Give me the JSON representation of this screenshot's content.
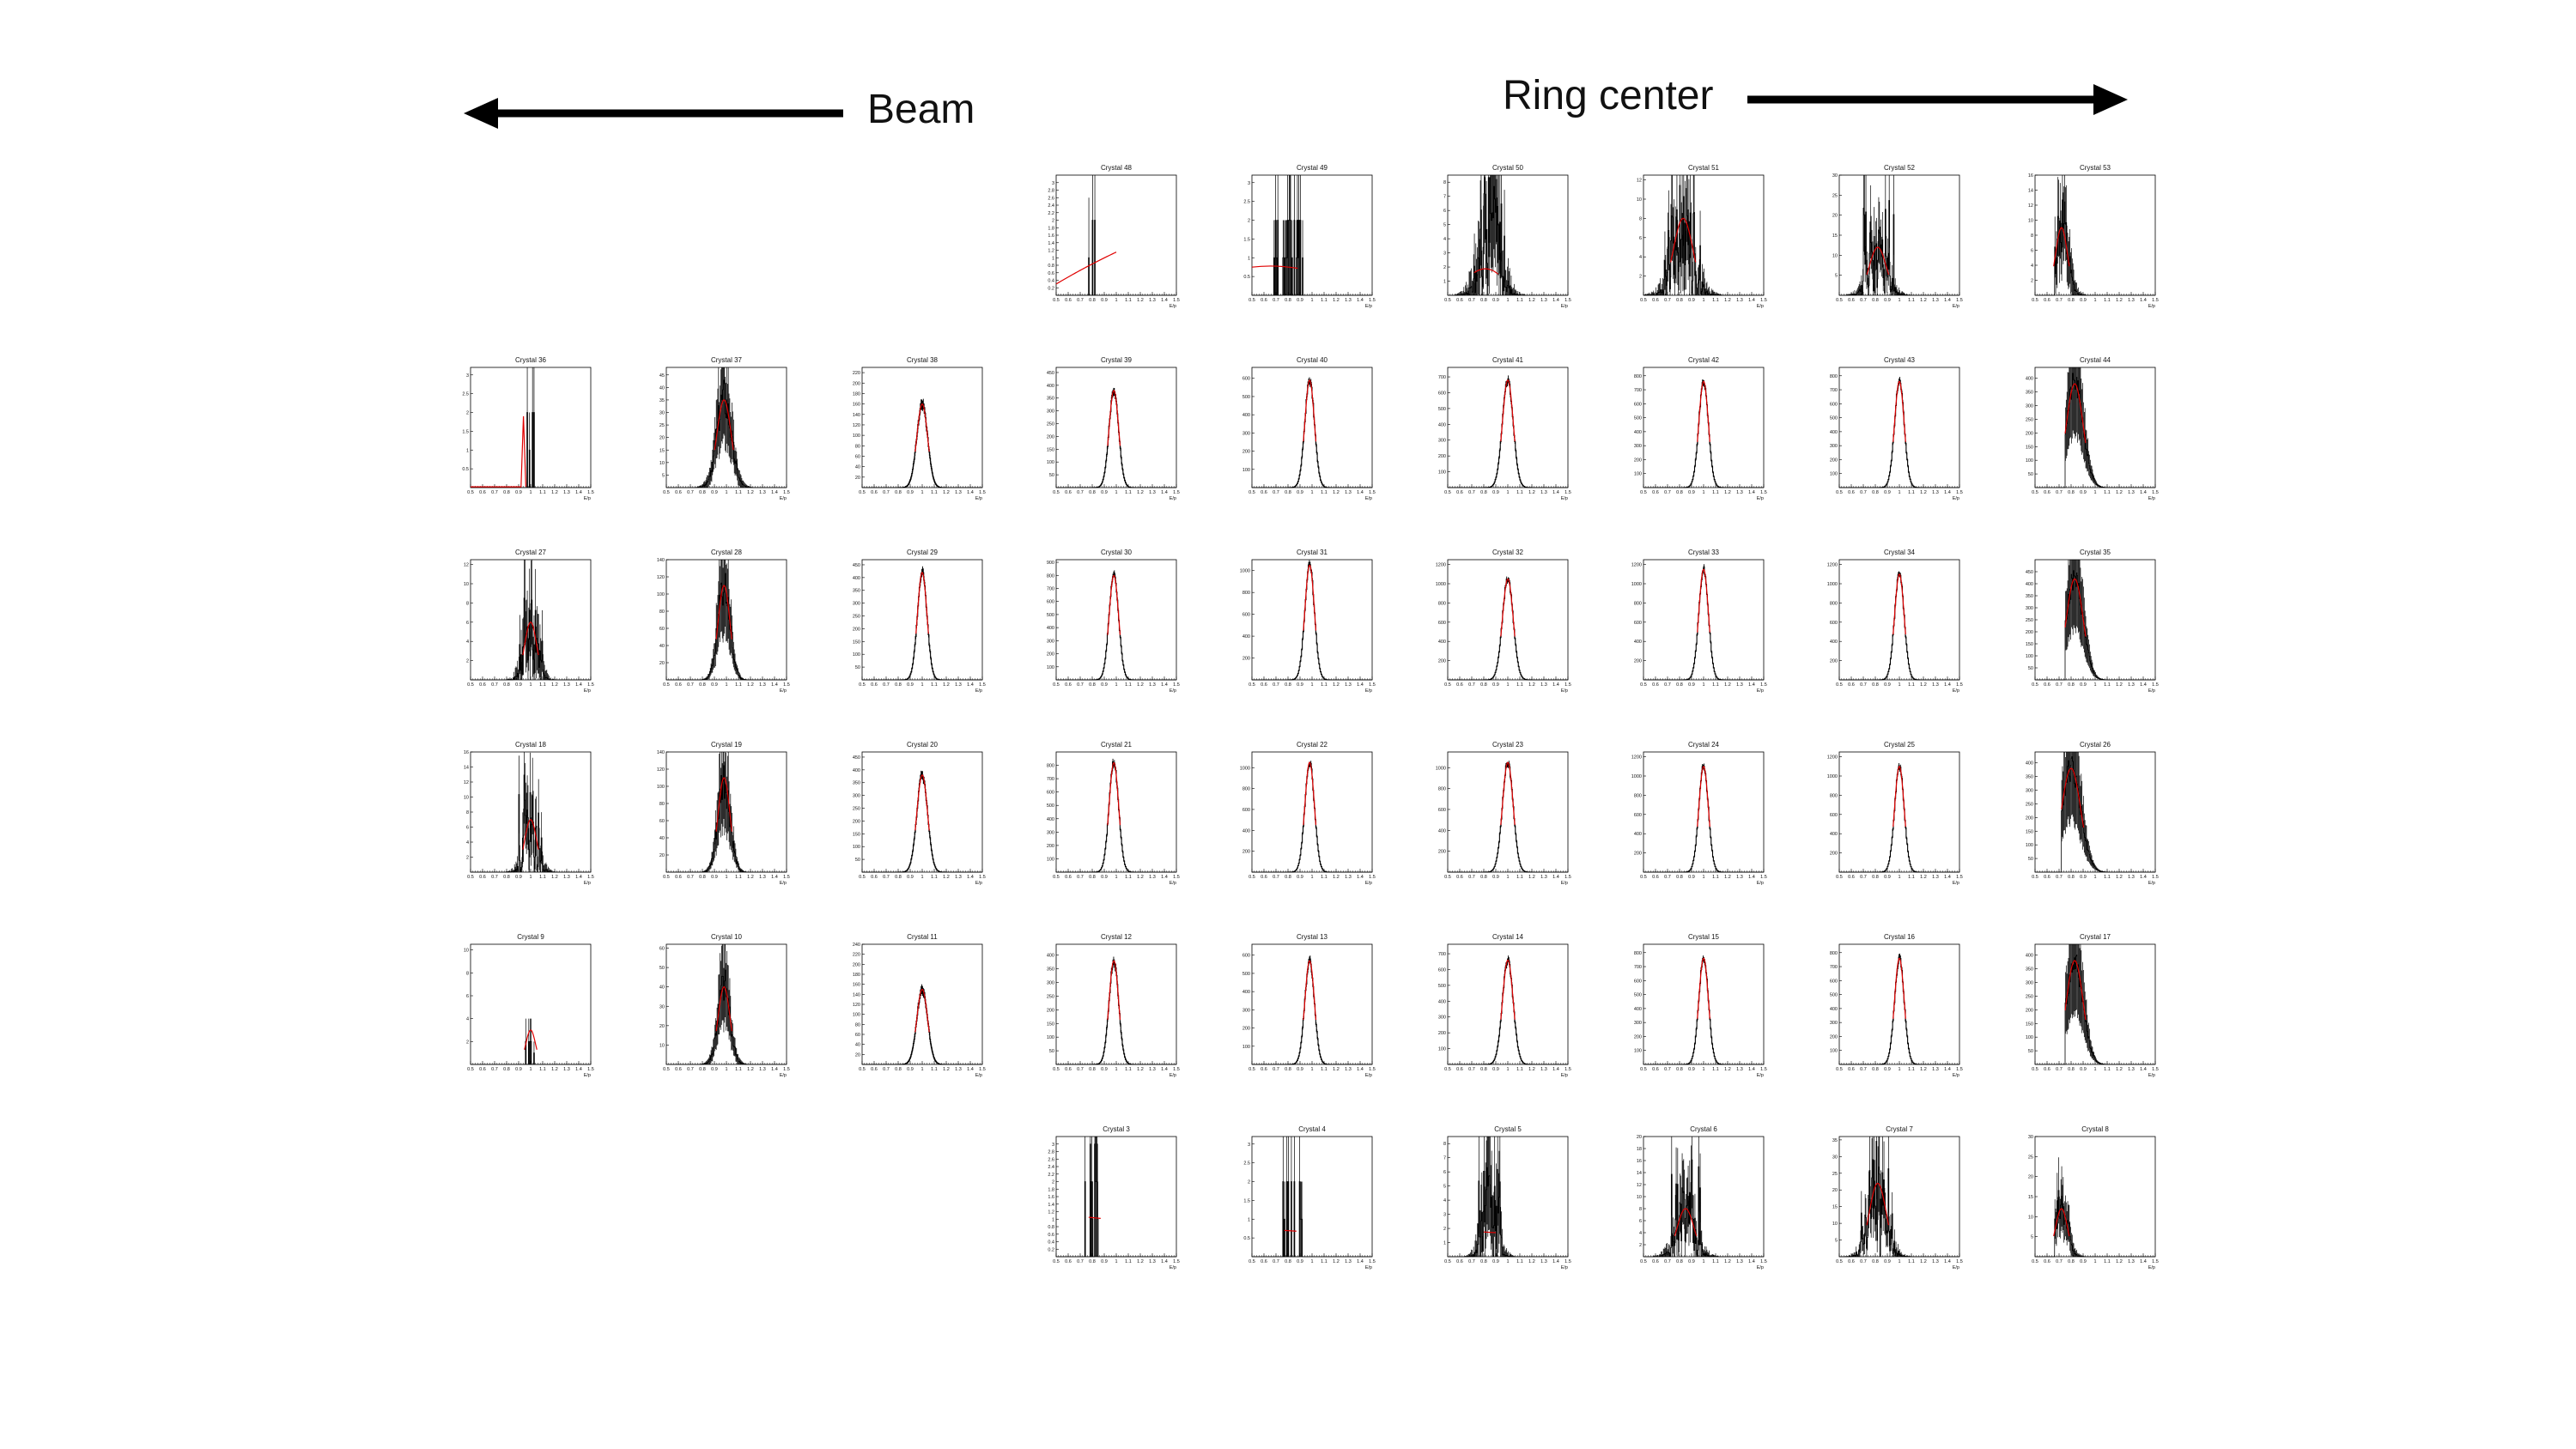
{
  "annotations": {
    "beam_label": "Beam",
    "ring_label": "Ring center"
  },
  "colors": {
    "histogram": "#000000",
    "fit": "#e00000",
    "axis": "#000000"
  },
  "chart_data": {
    "type": "histogram-grid",
    "description_axis": {
      "xlabel": "E/p",
      "xlim": [
        0.5,
        1.5
      ],
      "xticks": [
        "0.5",
        "0.6",
        "0.7",
        "0.8",
        "0.9",
        "1",
        "1.1",
        "1.2",
        "1.3",
        "1.4",
        "1.5"
      ]
    },
    "panels": [
      {
        "title": "Crystal 48",
        "row": 0,
        "col": 3,
        "center": 0.8,
        "width": 0.02,
        "peak": 3,
        "ymax": 3.2,
        "yticks": [
          "0.2",
          "0.4",
          "0.6",
          "0.8",
          "1",
          "1.2",
          "1.4",
          "1.6",
          "1.8",
          "2",
          "2.2",
          "2.4",
          "2.6",
          "2.8",
          "3"
        ],
        "fit": "rising",
        "quality": "sparse-single"
      },
      {
        "title": "Crystal 49",
        "row": 0,
        "col": 4,
        "center": 0.8,
        "width": 0.08,
        "peak": 2,
        "ymax": 3.2,
        "yticks": [
          "0.5",
          "1",
          "1.5",
          "2",
          "2.5",
          "3"
        ],
        "fit": "flat",
        "quality": "sparse"
      },
      {
        "title": "Crystal 50",
        "row": 0,
        "col": 5,
        "center": 0.85,
        "width": 0.07,
        "peak": 7,
        "ymax": 8.5,
        "yticks": [
          "1",
          "2",
          "3",
          "4",
          "5",
          "6",
          "7",
          "8"
        ],
        "fit": "flat-low",
        "quality": "noisy"
      },
      {
        "title": "Crystal 51",
        "row": 0,
        "col": 6,
        "center": 0.83,
        "width": 0.08,
        "peak": 8,
        "ymax": 12.5,
        "yticks": [
          "2",
          "4",
          "6",
          "8",
          "10",
          "12"
        ],
        "fit": "gauss",
        "quality": "noisy"
      },
      {
        "title": "Crystal 52",
        "row": 0,
        "col": 7,
        "center": 0.82,
        "width": 0.07,
        "peak": 12,
        "ymax": 30,
        "yticks": [
          "5",
          "10",
          "15",
          "20",
          "25",
          "30"
        ],
        "fit": "gauss",
        "quality": "noisy"
      },
      {
        "title": "Crystal 53",
        "row": 0,
        "col": 8,
        "center": 0.72,
        "width": 0.05,
        "peak": 9,
        "ymax": 16,
        "yticks": [
          "2",
          "4",
          "6",
          "8",
          "10",
          "12",
          "14",
          "16"
        ],
        "fit": "gauss",
        "quality": "noisy-left"
      },
      {
        "title": "Crystal 36",
        "row": 1,
        "col": 0,
        "center": 1.0,
        "width": 0.02,
        "peak": 2,
        "ymax": 3.2,
        "yticks": [
          "0.5",
          "1",
          "1.5",
          "2",
          "2.5",
          "3"
        ],
        "fit": "spike",
        "quality": "sparse"
      },
      {
        "title": "Crystal 37",
        "row": 1,
        "col": 1,
        "center": 0.98,
        "width": 0.06,
        "peak": 35,
        "ymax": 48,
        "yticks": [
          "5",
          "10",
          "15",
          "20",
          "25",
          "30",
          "35",
          "40",
          "45"
        ],
        "fit": "gauss",
        "quality": "medium"
      },
      {
        "title": "Crystal 38",
        "row": 1,
        "col": 2,
        "center": 1.0,
        "width": 0.045,
        "peak": 160,
        "ymax": 230,
        "yticks": [
          "20",
          "40",
          "60",
          "80",
          "100",
          "120",
          "140",
          "160",
          "180",
          "200",
          "220"
        ],
        "fit": "gauss",
        "quality": "good"
      },
      {
        "title": "Crystal 39",
        "row": 1,
        "col": 3,
        "center": 0.98,
        "width": 0.04,
        "peak": 380,
        "ymax": 470,
        "yticks": [
          "50",
          "100",
          "150",
          "200",
          "250",
          "300",
          "350",
          "400",
          "450"
        ],
        "fit": "gauss",
        "quality": "good"
      },
      {
        "title": "Crystal 40",
        "row": 1,
        "col": 4,
        "center": 0.98,
        "width": 0.04,
        "peak": 590,
        "ymax": 660,
        "yticks": [
          "100",
          "200",
          "300",
          "400",
          "500",
          "600"
        ],
        "fit": "gauss",
        "quality": "good"
      },
      {
        "title": "Crystal 41",
        "row": 1,
        "col": 5,
        "center": 1.0,
        "width": 0.045,
        "peak": 680,
        "ymax": 760,
        "yticks": [
          "100",
          "200",
          "300",
          "400",
          "500",
          "600",
          "700"
        ],
        "fit": "gauss",
        "quality": "good"
      },
      {
        "title": "Crystal 42",
        "row": 1,
        "col": 6,
        "center": 1.0,
        "width": 0.04,
        "peak": 760,
        "ymax": 860,
        "yticks": [
          "100",
          "200",
          "300",
          "400",
          "500",
          "600",
          "700",
          "800"
        ],
        "fit": "gauss",
        "quality": "good"
      },
      {
        "title": "Crystal 43",
        "row": 1,
        "col": 7,
        "center": 1.0,
        "width": 0.04,
        "peak": 760,
        "ymax": 860,
        "yticks": [
          "100",
          "200",
          "300",
          "400",
          "500",
          "600",
          "700",
          "800"
        ],
        "fit": "gauss",
        "quality": "good"
      },
      {
        "title": "Crystal 44",
        "row": 1,
        "col": 8,
        "center": 0.83,
        "width": 0.07,
        "peak": 380,
        "ymax": 440,
        "yticks": [
          "50",
          "100",
          "150",
          "200",
          "250",
          "300",
          "350",
          "400"
        ],
        "fit": "gauss",
        "quality": "left-cut"
      },
      {
        "title": "Crystal 27",
        "row": 2,
        "col": 0,
        "center": 1.0,
        "width": 0.05,
        "peak": 6,
        "ymax": 12.5,
        "yticks": [
          "2",
          "4",
          "6",
          "8",
          "10",
          "12"
        ],
        "fit": "gauss",
        "quality": "noisy"
      },
      {
        "title": "Crystal 28",
        "row": 2,
        "col": 1,
        "center": 0.98,
        "width": 0.05,
        "peak": 110,
        "ymax": 140,
        "yticks": [
          "20",
          "40",
          "60",
          "80",
          "100",
          "120",
          "140"
        ],
        "fit": "gauss",
        "quality": "medium"
      },
      {
        "title": "Crystal 29",
        "row": 2,
        "col": 2,
        "center": 1.0,
        "width": 0.04,
        "peak": 420,
        "ymax": 470,
        "yticks": [
          "50",
          "100",
          "150",
          "200",
          "250",
          "300",
          "350",
          "400",
          "450"
        ],
        "fit": "gauss",
        "quality": "good"
      },
      {
        "title": "Crystal 30",
        "row": 2,
        "col": 3,
        "center": 0.98,
        "width": 0.04,
        "peak": 800,
        "ymax": 920,
        "yticks": [
          "100",
          "200",
          "300",
          "400",
          "500",
          "600",
          "700",
          "800",
          "900"
        ],
        "fit": "gauss",
        "quality": "good"
      },
      {
        "title": "Crystal 31",
        "row": 2,
        "col": 4,
        "center": 0.98,
        "width": 0.04,
        "peak": 1050,
        "ymax": 1100,
        "yticks": [
          "200",
          "400",
          "600",
          "800",
          "1000"
        ],
        "fit": "gauss",
        "quality": "good"
      },
      {
        "title": "Crystal 32",
        "row": 2,
        "col": 5,
        "center": 1.0,
        "width": 0.045,
        "peak": 1050,
        "ymax": 1250,
        "yticks": [
          "200",
          "400",
          "600",
          "800",
          "1000",
          "1200"
        ],
        "fit": "gauss",
        "quality": "good"
      },
      {
        "title": "Crystal 33",
        "row": 2,
        "col": 6,
        "center": 1.0,
        "width": 0.04,
        "peak": 1150,
        "ymax": 1250,
        "yticks": [
          "200",
          "400",
          "600",
          "800",
          "1000",
          "1200"
        ],
        "fit": "gauss",
        "quality": "good"
      },
      {
        "title": "Crystal 34",
        "row": 2,
        "col": 7,
        "center": 1.0,
        "width": 0.04,
        "peak": 1100,
        "ymax": 1250,
        "yticks": [
          "200",
          "400",
          "600",
          "800",
          "1000",
          "1200"
        ],
        "fit": "gauss",
        "quality": "good"
      },
      {
        "title": "Crystal 35",
        "row": 2,
        "col": 8,
        "center": 0.83,
        "width": 0.07,
        "peak": 420,
        "ymax": 500,
        "yticks": [
          "50",
          "100",
          "150",
          "200",
          "250",
          "300",
          "350",
          "400",
          "450"
        ],
        "fit": "gauss",
        "quality": "left-cut"
      },
      {
        "title": "Crystal 18",
        "row": 3,
        "col": 0,
        "center": 1.0,
        "width": 0.05,
        "peak": 7,
        "ymax": 16,
        "yticks": [
          "2",
          "4",
          "6",
          "8",
          "10",
          "12",
          "14",
          "16"
        ],
        "fit": "gauss",
        "quality": "noisy"
      },
      {
        "title": "Crystal 19",
        "row": 3,
        "col": 1,
        "center": 0.98,
        "width": 0.05,
        "peak": 110,
        "ymax": 140,
        "yticks": [
          "20",
          "40",
          "60",
          "80",
          "100",
          "120",
          "140"
        ],
        "fit": "gauss",
        "quality": "medium"
      },
      {
        "title": "Crystal 20",
        "row": 3,
        "col": 2,
        "center": 1.0,
        "width": 0.045,
        "peak": 380,
        "ymax": 470,
        "yticks": [
          "50",
          "100",
          "150",
          "200",
          "250",
          "300",
          "350",
          "400",
          "450"
        ],
        "fit": "gauss",
        "quality": "good"
      },
      {
        "title": "Crystal 21",
        "row": 3,
        "col": 3,
        "center": 0.98,
        "width": 0.04,
        "peak": 820,
        "ymax": 900,
        "yticks": [
          "100",
          "200",
          "300",
          "400",
          "500",
          "600",
          "700",
          "800"
        ],
        "fit": "gauss",
        "quality": "good"
      },
      {
        "title": "Crystal 22",
        "row": 3,
        "col": 4,
        "center": 0.98,
        "width": 0.04,
        "peak": 1050,
        "ymax": 1150,
        "yticks": [
          "200",
          "400",
          "600",
          "800",
          "1000"
        ],
        "fit": "gauss",
        "quality": "good"
      },
      {
        "title": "Crystal 23",
        "row": 3,
        "col": 5,
        "center": 1.0,
        "width": 0.045,
        "peak": 1050,
        "ymax": 1150,
        "yticks": [
          "200",
          "400",
          "600",
          "800",
          "1000"
        ],
        "fit": "gauss",
        "quality": "good"
      },
      {
        "title": "Crystal 24",
        "row": 3,
        "col": 6,
        "center": 1.0,
        "width": 0.04,
        "peak": 1100,
        "ymax": 1250,
        "yticks": [
          "200",
          "400",
          "600",
          "800",
          "1000",
          "1200"
        ],
        "fit": "gauss",
        "quality": "good"
      },
      {
        "title": "Crystal 25",
        "row": 3,
        "col": 7,
        "center": 1.0,
        "width": 0.04,
        "peak": 1100,
        "ymax": 1250,
        "yticks": [
          "200",
          "400",
          "600",
          "800",
          "1000",
          "1200"
        ],
        "fit": "gauss",
        "quality": "good"
      },
      {
        "title": "Crystal 26",
        "row": 3,
        "col": 8,
        "center": 0.8,
        "width": 0.08,
        "peak": 380,
        "ymax": 440,
        "yticks": [
          "50",
          "100",
          "150",
          "200",
          "250",
          "300",
          "350",
          "400"
        ],
        "fit": "gauss",
        "quality": "left-cut"
      },
      {
        "title": "Crystal 9",
        "row": 4,
        "col": 0,
        "center": 1.0,
        "width": 0.04,
        "peak": 3,
        "ymax": 10.5,
        "yticks": [
          "2",
          "4",
          "6",
          "8",
          "10"
        ],
        "fit": "gauss",
        "quality": "sparse"
      },
      {
        "title": "Crystal 10",
        "row": 4,
        "col": 1,
        "center": 0.98,
        "width": 0.05,
        "peak": 40,
        "ymax": 62,
        "yticks": [
          "10",
          "20",
          "30",
          "40",
          "50",
          "60"
        ],
        "fit": "gauss",
        "quality": "medium"
      },
      {
        "title": "Crystal 11",
        "row": 4,
        "col": 2,
        "center": 1.0,
        "width": 0.045,
        "peak": 150,
        "ymax": 240,
        "yticks": [
          "20",
          "40",
          "60",
          "80",
          "100",
          "120",
          "140",
          "160",
          "180",
          "200",
          "220",
          "240"
        ],
        "fit": "gauss",
        "quality": "good"
      },
      {
        "title": "Crystal 12",
        "row": 4,
        "col": 3,
        "center": 0.98,
        "width": 0.04,
        "peak": 380,
        "ymax": 440,
        "yticks": [
          "50",
          "100",
          "150",
          "200",
          "250",
          "300",
          "350",
          "400"
        ],
        "fit": "gauss",
        "quality": "good"
      },
      {
        "title": "Crystal 13",
        "row": 4,
        "col": 4,
        "center": 0.98,
        "width": 0.04,
        "peak": 570,
        "ymax": 660,
        "yticks": [
          "100",
          "200",
          "300",
          "400",
          "500",
          "600"
        ],
        "fit": "gauss",
        "quality": "good"
      },
      {
        "title": "Crystal 14",
        "row": 4,
        "col": 5,
        "center": 1.0,
        "width": 0.045,
        "peak": 660,
        "ymax": 760,
        "yticks": [
          "100",
          "200",
          "300",
          "400",
          "500",
          "600",
          "700"
        ],
        "fit": "gauss",
        "quality": "good"
      },
      {
        "title": "Crystal 15",
        "row": 4,
        "col": 6,
        "center": 1.0,
        "width": 0.04,
        "peak": 760,
        "ymax": 860,
        "yticks": [
          "100",
          "200",
          "300",
          "400",
          "500",
          "600",
          "700",
          "800"
        ],
        "fit": "gauss",
        "quality": "good"
      },
      {
        "title": "Crystal 16",
        "row": 4,
        "col": 7,
        "center": 1.0,
        "width": 0.04,
        "peak": 760,
        "ymax": 860,
        "yticks": [
          "100",
          "200",
          "300",
          "400",
          "500",
          "600",
          "700",
          "800"
        ],
        "fit": "gauss",
        "quality": "good"
      },
      {
        "title": "Crystal 17",
        "row": 4,
        "col": 8,
        "center": 0.83,
        "width": 0.07,
        "peak": 380,
        "ymax": 440,
        "yticks": [
          "50",
          "100",
          "150",
          "200",
          "250",
          "300",
          "350",
          "400"
        ],
        "fit": "gauss",
        "quality": "left-cut"
      },
      {
        "title": "Crystal 3",
        "row": 5,
        "col": 3,
        "center": 0.82,
        "width": 0.05,
        "peak": 3,
        "ymax": 3.2,
        "yticks": [
          "0.2",
          "0.4",
          "0.6",
          "0.8",
          "1",
          "1.2",
          "1.4",
          "1.6",
          "1.8",
          "2",
          "2.2",
          "2.4",
          "2.6",
          "2.8",
          "3"
        ],
        "fit": "flat-line",
        "quality": "sparse"
      },
      {
        "title": "Crystal 4",
        "row": 5,
        "col": 4,
        "center": 0.82,
        "width": 0.06,
        "peak": 2,
        "ymax": 3.2,
        "yticks": [
          "0.5",
          "1",
          "1.5",
          "2",
          "2.5",
          "3"
        ],
        "fit": "flat-line",
        "quality": "sparse"
      },
      {
        "title": "Crystal 5",
        "row": 5,
        "col": 5,
        "center": 0.85,
        "width": 0.05,
        "peak": 5,
        "ymax": 8.5,
        "yticks": [
          "1",
          "2",
          "3",
          "4",
          "5",
          "6",
          "7",
          "8"
        ],
        "fit": "flat-line",
        "quality": "noisy"
      },
      {
        "title": "Crystal 6",
        "row": 5,
        "col": 6,
        "center": 0.85,
        "width": 0.07,
        "peak": 8,
        "ymax": 20,
        "yticks": [
          "2",
          "4",
          "6",
          "8",
          "10",
          "12",
          "14",
          "16",
          "18",
          "20"
        ],
        "fit": "gauss",
        "quality": "noisy"
      },
      {
        "title": "Crystal 7",
        "row": 5,
        "col": 7,
        "center": 0.82,
        "width": 0.07,
        "peak": 22,
        "ymax": 36,
        "yticks": [
          "5",
          "10",
          "15",
          "20",
          "25",
          "30",
          "35"
        ],
        "fit": "gauss",
        "quality": "noisy"
      },
      {
        "title": "Crystal 8",
        "row": 5,
        "col": 8,
        "center": 0.72,
        "width": 0.05,
        "peak": 12,
        "ymax": 30,
        "yticks": [
          "5",
          "10",
          "15",
          "20",
          "25",
          "30"
        ],
        "fit": "gauss",
        "quality": "noisy-left"
      }
    ]
  }
}
